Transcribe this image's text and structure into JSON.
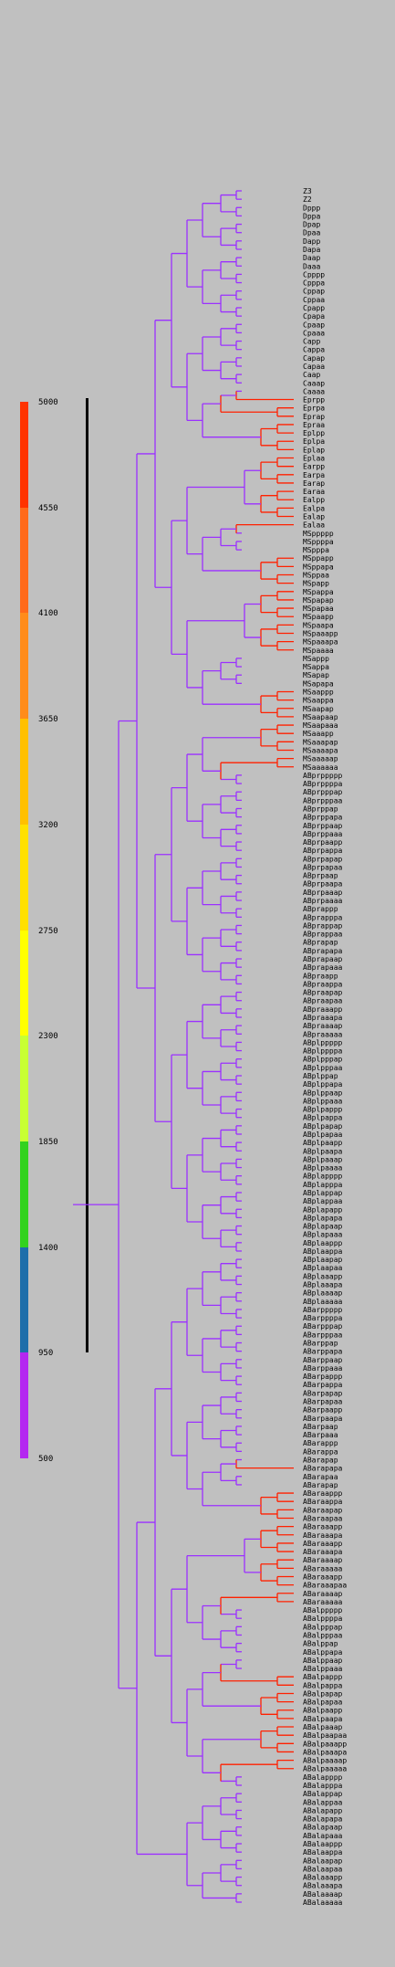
{
  "colors": {
    "background": "#c0c0c0",
    "tree_default": "#9b30ff",
    "late_lineage": "#ff2000"
  },
  "legend": {
    "segments": [
      {
        "color": "#ff3300"
      },
      {
        "color": "#ff6a1a"
      },
      {
        "color": "#ff8c1a"
      },
      {
        "color": "#ffc000"
      },
      {
        "color": "#ffe000"
      },
      {
        "color": "#ffff00"
      },
      {
        "color": "#c8ff32"
      },
      {
        "color": "#32d21e"
      },
      {
        "color": "#1e6eaa"
      },
      {
        "color": "#b428f0"
      }
    ],
    "ticks": [
      "5000",
      "4550",
      "4100",
      "3650",
      "3200",
      "2750",
      "2300",
      "1850",
      "1400",
      "950",
      "500"
    ]
  },
  "leaves": [
    "Z3",
    "Z2",
    "Dppp",
    "Dppa",
    "Dpap",
    "Dpaa",
    "Dapp",
    "Dapa",
    "Daap",
    "Daaa",
    "Cpppp",
    "Cpppa",
    "Cppap",
    "Cppaa",
    "Cpapp",
    "Cpapa",
    "Cpaap",
    "Cpaaa",
    "Capp",
    "Cappa",
    "Capap",
    "Capaa",
    "Caap",
    "Caaap",
    "Caaaa",
    "Eprpp",
    "Eprpa",
    "Eprap",
    "Epraa",
    "Eplpp",
    "Eplpa",
    "Eplap",
    "Eplaa",
    "Earpp",
    "Earpa",
    "Earap",
    "Earaa",
    "Ealpp",
    "Ealpa",
    "Ealap",
    "Ealaa",
    "MSppppp",
    "MSppppa",
    "MSpppa",
    "MSppapp",
    "MSppapa",
    "MSppaa",
    "MSpapp",
    "MSpappa",
    "MSpapap",
    "MSpapaa",
    "MSpaapp",
    "MSpaapa",
    "MSpaaapp",
    "MSpaaapa",
    "MSpaaaa",
    "MSappp",
    "MSappa",
    "MSapap",
    "MSapapa",
    "MSaappp",
    "MSaappa",
    "MSaapap",
    "MSaapaap",
    "MSaapaaa",
    "MSaaapp",
    "MSaaapap",
    "MSaaaapa",
    "MSaaaaap",
    "MSaaaaaa",
    "ABprppppp",
    "ABprppppa",
    "ABprpppap",
    "ABprpppaa",
    "ABprppap",
    "ABprppapa",
    "ABprppaap",
    "ABprppaaa",
    "ABprpaapp",
    "ABprpappa",
    "ABprpapap",
    "ABprpapaa",
    "ABprpaap",
    "ABprpaapa",
    "ABprpaaap",
    "ABprpaaaa",
    "ABprappp",
    "ABprapppa",
    "ABprappap",
    "ABprappaa",
    "ABprapap",
    "ABprapapa",
    "ABprapaap",
    "ABprapaaa",
    "ABpraapp",
    "ABpraappa",
    "ABpraapap",
    "ABpraapaa",
    "ABpraaapp",
    "ABpraaapa",
    "ABpraaaap",
    "ABpraaaaa",
    "ABplppppp",
    "ABplppppa",
    "ABplpppap",
    "ABplpppaa",
    "ABplppap",
    "ABplppapa",
    "ABplppaap",
    "ABplppaaa",
    "ABplpappp",
    "ABplpappa",
    "ABplpapap",
    "ABplpapaa",
    "ABplpaapp",
    "ABplpaapa",
    "ABplpaaap",
    "ABplpaaaa",
    "ABplapppp",
    "ABplapppa",
    "ABplappap",
    "ABplappaa",
    "ABplapapp",
    "ABplapapa",
    "ABplapaap",
    "ABplapaaa",
    "ABplaappp",
    "ABplaappa",
    "ABplaapap",
    "ABplaapaa",
    "ABplaaapp",
    "ABplaaapa",
    "ABplaaaap",
    "ABplaaaaa",
    "ABarppppp",
    "ABarppppa",
    "ABarpppap",
    "ABarpppaa",
    "ABarppap",
    "ABarppapa",
    "ABarppaap",
    "ABarppaaa",
    "ABarpappp",
    "ABarpappa",
    "ABarpapap",
    "ABarpapaa",
    "ABarpaapp",
    "ABarpaapa",
    "ABarpaap",
    "ABarpaaa",
    "ABarappp",
    "ABarappa",
    "ABarapap",
    "ABarapapa",
    "ABarapaa",
    "ABarapap",
    "ABaraappp",
    "ABaraappa",
    "ABaraapap",
    "ABaraapaa",
    "ABaraaapp",
    "ABaraaapa",
    "ABaraaapp",
    "ABaraaapa",
    "ABaraaaap",
    "ABaraaaaa",
    "ABaraaapp",
    "ABaraaapaa",
    "ABaraaaap",
    "ABaraaaaa",
    "ABalppppp",
    "ABalppppa",
    "ABalpppap",
    "ABalpppaa",
    "ABalppap",
    "ABalppapa",
    "ABalppaap",
    "ABalppaaa",
    "ABalpappp",
    "ABalpappa",
    "ABalpapap",
    "ABalpapaa",
    "ABalpaapp",
    "ABalpaapa",
    "ABalpaaap",
    "ABalpaapaa",
    "ABalpaaapp",
    "ABalpaaapa",
    "ABalpaaaap",
    "ABalpaaaaa",
    "ABalapppp",
    "ABalapppa",
    "ABalappap",
    "ABalappaa",
    "ABalapapp",
    "ABalapapa",
    "ABalapaap",
    "ABalapaaa",
    "ABalaappp",
    "ABalaappa",
    "ABalaapap",
    "ABalaapaa",
    "ABalaaapp",
    "ABalaaapa",
    "ABalaaaap",
    "ABalaaaaa"
  ],
  "late_lineage_leaves": [
    "Eprpp",
    "Eprpa",
    "Eprap",
    "Epraa",
    "Eplpp",
    "Eplpa",
    "Eplap",
    "Eplaa",
    "Earpp",
    "Earpa",
    "Earap",
    "Earaa",
    "Ealpp",
    "Ealpa",
    "Ealap",
    "Ealaa",
    "MSppapp",
    "MSppapa",
    "MSppaa",
    "MSpapp",
    "MSpappa",
    "MSpapap",
    "MSpapaa",
    "MSpaapp",
    "MSpaapa",
    "MSpaaapp",
    "MSpaaapa",
    "MSpaaaa",
    "MSaappp",
    "MSaappa",
    "MSaapap",
    "MSaapaap",
    "MSaapaaa",
    "MSaaapp",
    "MSaaapap",
    "MSaaaapa",
    "MSaaaaap",
    "MSaaaaaa",
    "ABarapapa",
    "ABaraappp",
    "ABaraappa",
    "ABaraapap",
    "ABaraapaa",
    "ABaraaapp",
    "ABaraaapa",
    "ABaraaaap",
    "ABaraaaaa",
    "ABaraaapaa",
    "ABalpappp",
    "ABalpappa",
    "ABalpapap",
    "ABalpapaa",
    "ABalpaapp",
    "ABalpaapa",
    "ABalpaaap",
    "ABalpaapaa",
    "ABalpaaapp",
    "ABalpaaapa",
    "ABalpaaaap",
    "ABalpaaaaa"
  ]
}
